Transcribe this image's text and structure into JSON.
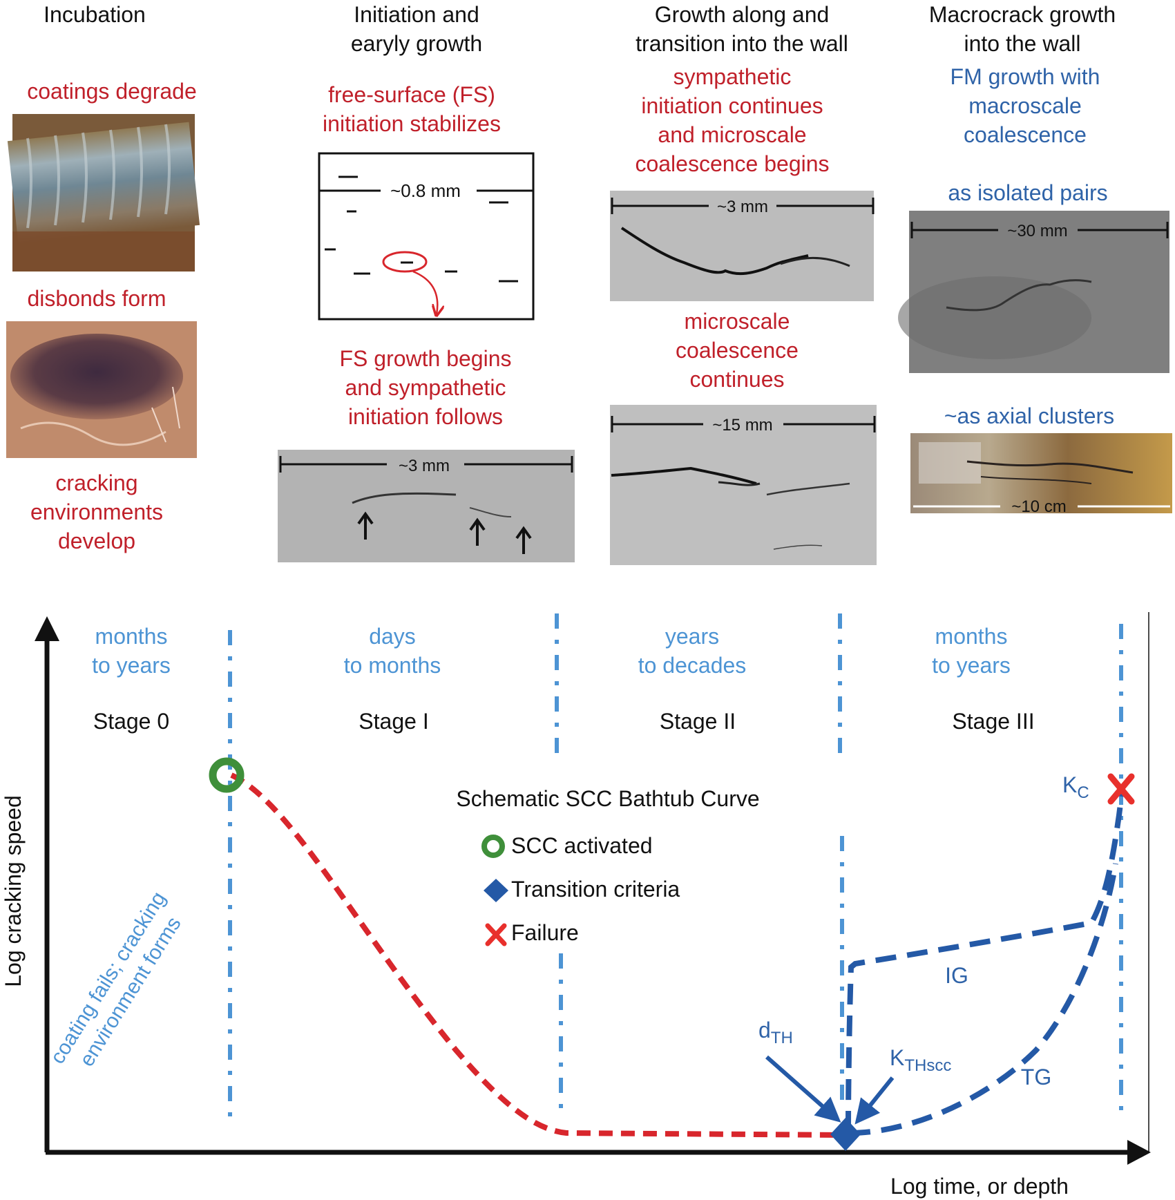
{
  "colors": {
    "red_text": "#c0202a",
    "blue_text": "#2f63a8",
    "light_blue": "#4d94d4",
    "curve_red": "#d8262c",
    "curve_blue": "#2459a6",
    "activated_green": "#3f8f3a",
    "failure_red": "#e8302c"
  },
  "panels": {
    "incubation": {
      "title": [
        "Incubation"
      ],
      "notes": {
        "coatings": "coatings degrade",
        "disbonds": "disbonds form",
        "cracking_env": [
          "cracking",
          "environments",
          "develop"
        ]
      },
      "images": [
        "pipe-photo-icon",
        "disbond-photo-icon"
      ]
    },
    "initiation": {
      "title": [
        "Initiation and",
        "earyly growth"
      ],
      "note_top": [
        "free-surface (FS)",
        "initiation stabilizes"
      ],
      "schematic_scale": "~0.8 mm",
      "note_bottom": [
        "FS growth begins",
        "and sympathetic",
        "initiation follows"
      ],
      "micrograph_scale": "~3 mm"
    },
    "growth": {
      "title": [
        "Growth along and",
        "transition into the wall"
      ],
      "note_top": [
        "sympathetic",
        "initiation continues",
        "and microscale",
        "coalescence begins"
      ],
      "scale_top": "~3 mm",
      "note_mid": [
        "microscale",
        "coalescence",
        "continues"
      ],
      "scale_bottom": "~15 mm"
    },
    "macrocrack": {
      "title": [
        "Macrocrack growth",
        "into the wall"
      ],
      "note_top": [
        "FM growth with",
        "macroscale",
        "coalescence"
      ],
      "label_pairs": "as isolated pairs",
      "scale_pairs": "~30 mm",
      "label_clusters": "~as axial clusters",
      "scale_clusters": "~10 cm"
    }
  },
  "curve": {
    "title": "Schematic SCC Bathtub Curve",
    "y_axis_label": "Log cracking speed",
    "x_axis_label": "Log time, or depth",
    "stages": [
      {
        "durations": [
          "months",
          "to years"
        ],
        "name": "Stage 0"
      },
      {
        "durations": [
          "days",
          "to months"
        ],
        "name": "Stage I"
      },
      {
        "durations": [
          "years",
          "to decades"
        ],
        "name": "Stage II"
      },
      {
        "durations": [
          "months",
          "to years"
        ],
        "name": "Stage III"
      }
    ],
    "legend": [
      {
        "icon": "scc-activated-icon",
        "label": "SCC activated"
      },
      {
        "icon": "transition-criteria-icon",
        "label": "Transition criteria"
      },
      {
        "icon": "failure-icon",
        "label": "Failure"
      }
    ],
    "stage0_annotation": [
      "coating fails; cracking",
      "environment forms"
    ],
    "labels": {
      "ig": "IG",
      "tg": "TG",
      "d_th": {
        "main": "d",
        "sub": "TH"
      },
      "k_thscc": {
        "main": "K",
        "sub": "THscc"
      },
      "k_c": {
        "main": "K",
        "sub": "C"
      }
    }
  }
}
